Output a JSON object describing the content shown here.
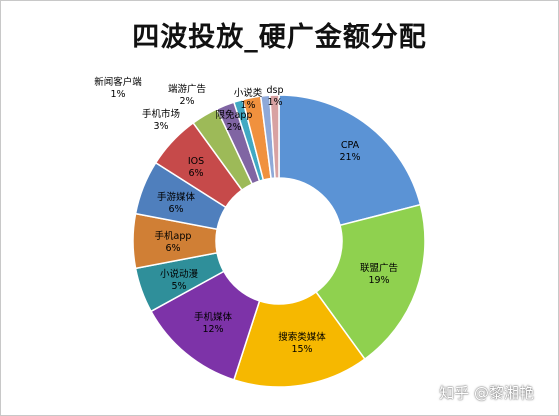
{
  "chart_data": {
    "type": "pie",
    "title": "四波投放_硬广金额分配",
    "donut": true,
    "legend": "none",
    "slices": [
      {
        "label": "CPA",
        "percent": "21%",
        "value": 21,
        "color": "#5b93d5"
      },
      {
        "label": "联盟广告",
        "percent": "19%",
        "value": 19,
        "color": "#8fd14f"
      },
      {
        "label": "搜索类媒体",
        "percent": "15%",
        "value": 15,
        "color": "#f6b800"
      },
      {
        "label": "手机媒体",
        "percent": "12%",
        "value": 12,
        "color": "#7d33a8"
      },
      {
        "label": "小说动漫",
        "percent": "5%",
        "value": 5,
        "color": "#2f8f9a"
      },
      {
        "label": "手机app",
        "percent": "6%",
        "value": 6,
        "color": "#d07f35"
      },
      {
        "label": "手游媒体",
        "percent": "6%",
        "value": 6,
        "color": "#4f7fbd"
      },
      {
        "label": "IOS",
        "percent": "6%",
        "value": 6,
        "color": "#c64a4a"
      },
      {
        "label": "手机市场",
        "percent": "3%",
        "value": 3,
        "color": "#9dba58"
      },
      {
        "label": "端游广告",
        "percent": "2%",
        "value": 2,
        "color": "#8065a3"
      },
      {
        "label": "新闻客户端",
        "percent": "1%",
        "value": 1,
        "color": "#41a9c3"
      },
      {
        "label": "限免app",
        "percent": "2%",
        "value": 2,
        "color": "#f0913e"
      },
      {
        "label": "小说类",
        "percent": "1%",
        "value": 1,
        "color": "#8fa9d8"
      },
      {
        "label": "dsp",
        "percent": "1%",
        "value": 1,
        "color": "#d8a2a2"
      }
    ]
  },
  "watermark": "知乎 @黎湘艳"
}
